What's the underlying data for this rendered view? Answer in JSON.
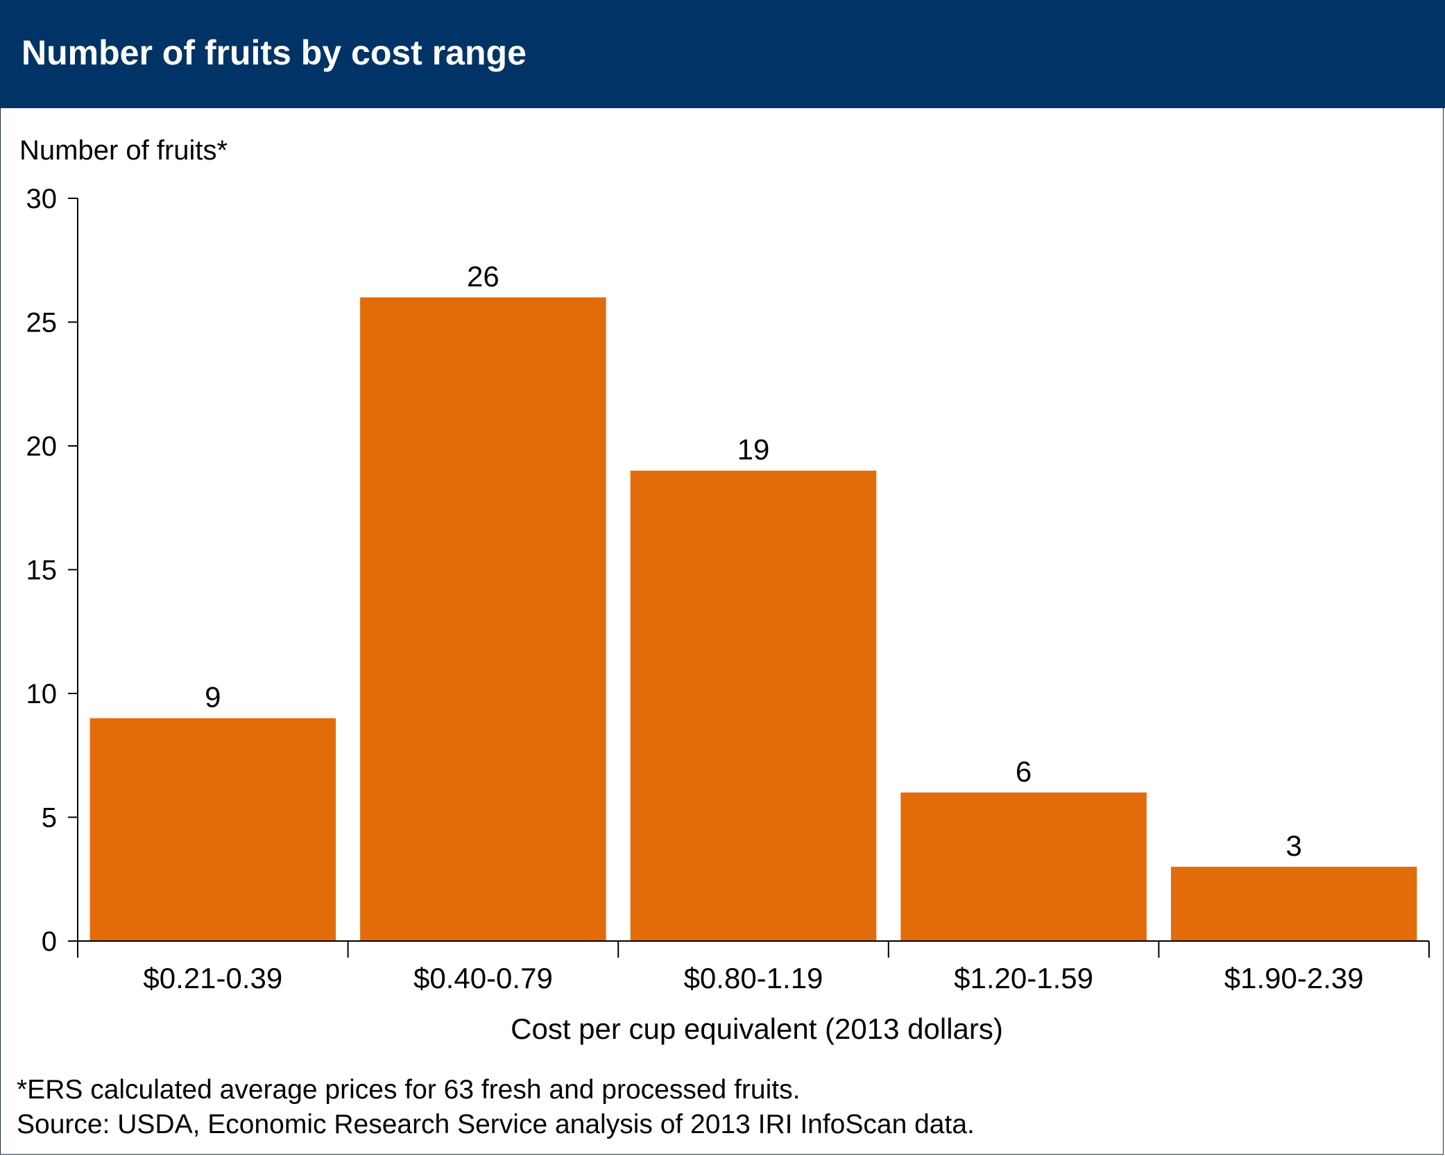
{
  "colors": {
    "header_bg": "#003366",
    "bar": "#e36c0a",
    "text": "#000000",
    "axis": "#000000"
  },
  "title": "Number of fruits by cost range",
  "chart_data": {
    "type": "bar",
    "title": "Number of fruits by cost range",
    "ylabel": "Number of fruits*",
    "xlabel": "Cost per cup equivalent (2013 dollars)",
    "ylim": [
      0,
      30
    ],
    "yticks": [
      0,
      5,
      10,
      15,
      20,
      25,
      30
    ],
    "categories": [
      "$0.21-0.39",
      "$0.40-0.79",
      "$0.80-1.19",
      "$1.20-1.59",
      "$1.90-2.39"
    ],
    "values": [
      9,
      26,
      19,
      6,
      3
    ],
    "data_labels": [
      "9",
      "26",
      "19",
      "6",
      "3"
    ],
    "grid": false,
    "legend": "none"
  },
  "notes": {
    "footnote": "*ERS calculated average prices for 63 fresh and processed fruits.",
    "source": "Source: USDA, Economic Research Service analysis of 2013 IRI InfoScan data."
  }
}
